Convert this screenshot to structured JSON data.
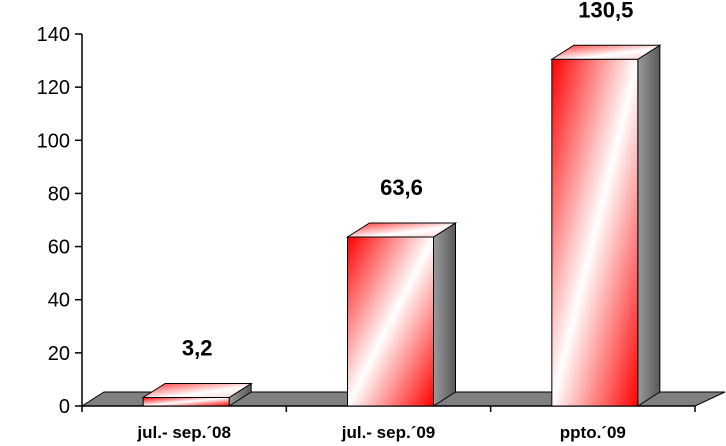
{
  "chart_data": {
    "type": "bar",
    "categories": [
      "jul.- sep.´08",
      "jul.- sep.´09",
      "ppto.´09"
    ],
    "values": [
      3.2,
      63.6,
      130.5
    ],
    "value_labels": [
      "3,2",
      "63,6",
      "130,5"
    ],
    "title": "",
    "xlabel": "",
    "ylabel": "",
    "ylim": [
      0,
      140
    ],
    "yticks": [
      0,
      20,
      40,
      60,
      80,
      100,
      120,
      140
    ],
    "grid": false,
    "legend": "none",
    "style": "3d-column",
    "colors": {
      "bar_edge": "#ff0000",
      "bar_center": "#ffffff",
      "side": "#808080",
      "floor": "#808080",
      "axis": "#000000"
    }
  }
}
